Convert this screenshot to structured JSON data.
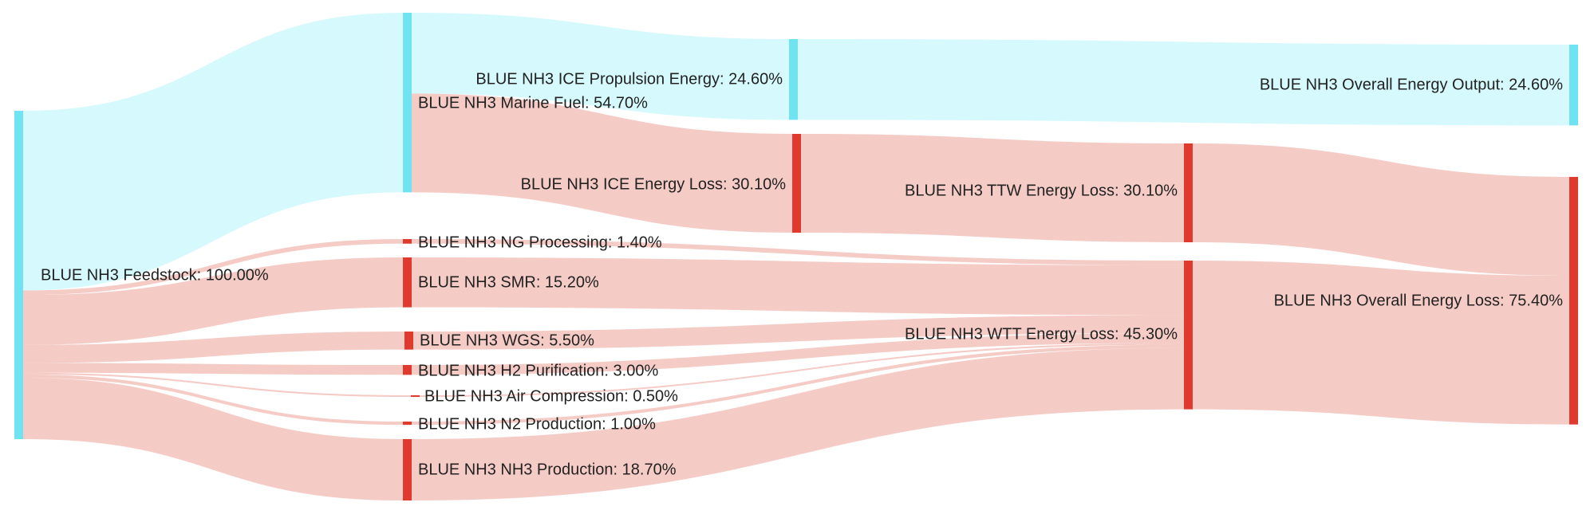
{
  "chart_data": {
    "type": "sankey",
    "title": "",
    "colors": {
      "energy": "#6fe3f2",
      "loss": "#e03a2f",
      "energy_link": "#b2f4fa",
      "loss_link": "#eda198"
    },
    "nodes": [
      {
        "id": "feedstock",
        "label": "BLUE NH3 Feedstock: 100.00%",
        "value": 100.0,
        "kind": "energy"
      },
      {
        "id": "marine_fuel",
        "label": "BLUE NH3 Marine Fuel: 54.70%",
        "value": 54.7,
        "kind": "energy"
      },
      {
        "id": "ng_processing",
        "label": "BLUE NH3 NG Processing: 1.40%",
        "value": 1.4,
        "kind": "loss"
      },
      {
        "id": "smr",
        "label": "BLUE NH3 SMR: 15.20%",
        "value": 15.2,
        "kind": "loss"
      },
      {
        "id": "wgs",
        "label": "BLUE NH3 WGS: 5.50%",
        "value": 5.5,
        "kind": "loss"
      },
      {
        "id": "h2_purification",
        "label": "BLUE NH3 H2 Purification: 3.00%",
        "value": 3.0,
        "kind": "loss"
      },
      {
        "id": "air_compression",
        "label": "BLUE NH3 Air Compression: 0.50%",
        "value": 0.5,
        "kind": "loss"
      },
      {
        "id": "n2_production",
        "label": "BLUE NH3 N2 Production: 1.00%",
        "value": 1.0,
        "kind": "loss"
      },
      {
        "id": "nh3_production",
        "label": "BLUE NH3 NH3 Production: 18.70%",
        "value": 18.7,
        "kind": "loss"
      },
      {
        "id": "ice_propulsion",
        "label": "BLUE NH3 ICE Propulsion Energy: 24.60%",
        "value": 24.6,
        "kind": "energy"
      },
      {
        "id": "ice_loss",
        "label": "BLUE NH3 ICE Energy Loss: 30.10%",
        "value": 30.1,
        "kind": "loss"
      },
      {
        "id": "ttw_loss",
        "label": "BLUE NH3 TTW Energy Loss: 30.10%",
        "value": 30.1,
        "kind": "loss"
      },
      {
        "id": "wtt_loss",
        "label": "BLUE NH3 WTT Energy Loss: 45.30%",
        "value": 45.3,
        "kind": "loss"
      },
      {
        "id": "overall_output",
        "label": "BLUE NH3 Overall Energy Output: 24.60%",
        "value": 24.6,
        "kind": "energy"
      },
      {
        "id": "overall_loss",
        "label": "BLUE NH3 Overall Energy Loss: 75.40%",
        "value": 75.4,
        "kind": "loss"
      }
    ],
    "links": [
      {
        "source": "feedstock",
        "target": "marine_fuel",
        "value": 54.7,
        "kind": "energy"
      },
      {
        "source": "feedstock",
        "target": "ng_processing",
        "value": 1.4,
        "kind": "loss"
      },
      {
        "source": "feedstock",
        "target": "smr",
        "value": 15.2,
        "kind": "loss"
      },
      {
        "source": "feedstock",
        "target": "wgs",
        "value": 5.5,
        "kind": "loss"
      },
      {
        "source": "feedstock",
        "target": "h2_purification",
        "value": 3.0,
        "kind": "loss"
      },
      {
        "source": "feedstock",
        "target": "air_compression",
        "value": 0.5,
        "kind": "loss"
      },
      {
        "source": "feedstock",
        "target": "n2_production",
        "value": 1.0,
        "kind": "loss"
      },
      {
        "source": "feedstock",
        "target": "nh3_production",
        "value": 18.7,
        "kind": "loss"
      },
      {
        "source": "marine_fuel",
        "target": "ice_propulsion",
        "value": 24.6,
        "kind": "energy"
      },
      {
        "source": "marine_fuel",
        "target": "ice_loss",
        "value": 30.1,
        "kind": "loss"
      },
      {
        "source": "ice_propulsion",
        "target": "overall_output",
        "value": 24.6,
        "kind": "energy"
      },
      {
        "source": "ice_loss",
        "target": "ttw_loss",
        "value": 30.1,
        "kind": "loss"
      },
      {
        "source": "ng_processing",
        "target": "wtt_loss",
        "value": 1.4,
        "kind": "loss"
      },
      {
        "source": "smr",
        "target": "wtt_loss",
        "value": 15.2,
        "kind": "loss"
      },
      {
        "source": "wgs",
        "target": "wtt_loss",
        "value": 5.5,
        "kind": "loss"
      },
      {
        "source": "h2_purification",
        "target": "wtt_loss",
        "value": 3.0,
        "kind": "loss"
      },
      {
        "source": "air_compression",
        "target": "wtt_loss",
        "value": 0.5,
        "kind": "loss"
      },
      {
        "source": "n2_production",
        "target": "wtt_loss",
        "value": 1.0,
        "kind": "loss"
      },
      {
        "source": "nh3_production",
        "target": "wtt_loss",
        "value": 18.7,
        "kind": "loss"
      },
      {
        "source": "ttw_loss",
        "target": "overall_loss",
        "value": 30.1,
        "kind": "loss"
      },
      {
        "source": "wtt_loss",
        "target": "overall_loss",
        "value": 45.3,
        "kind": "loss"
      }
    ]
  }
}
